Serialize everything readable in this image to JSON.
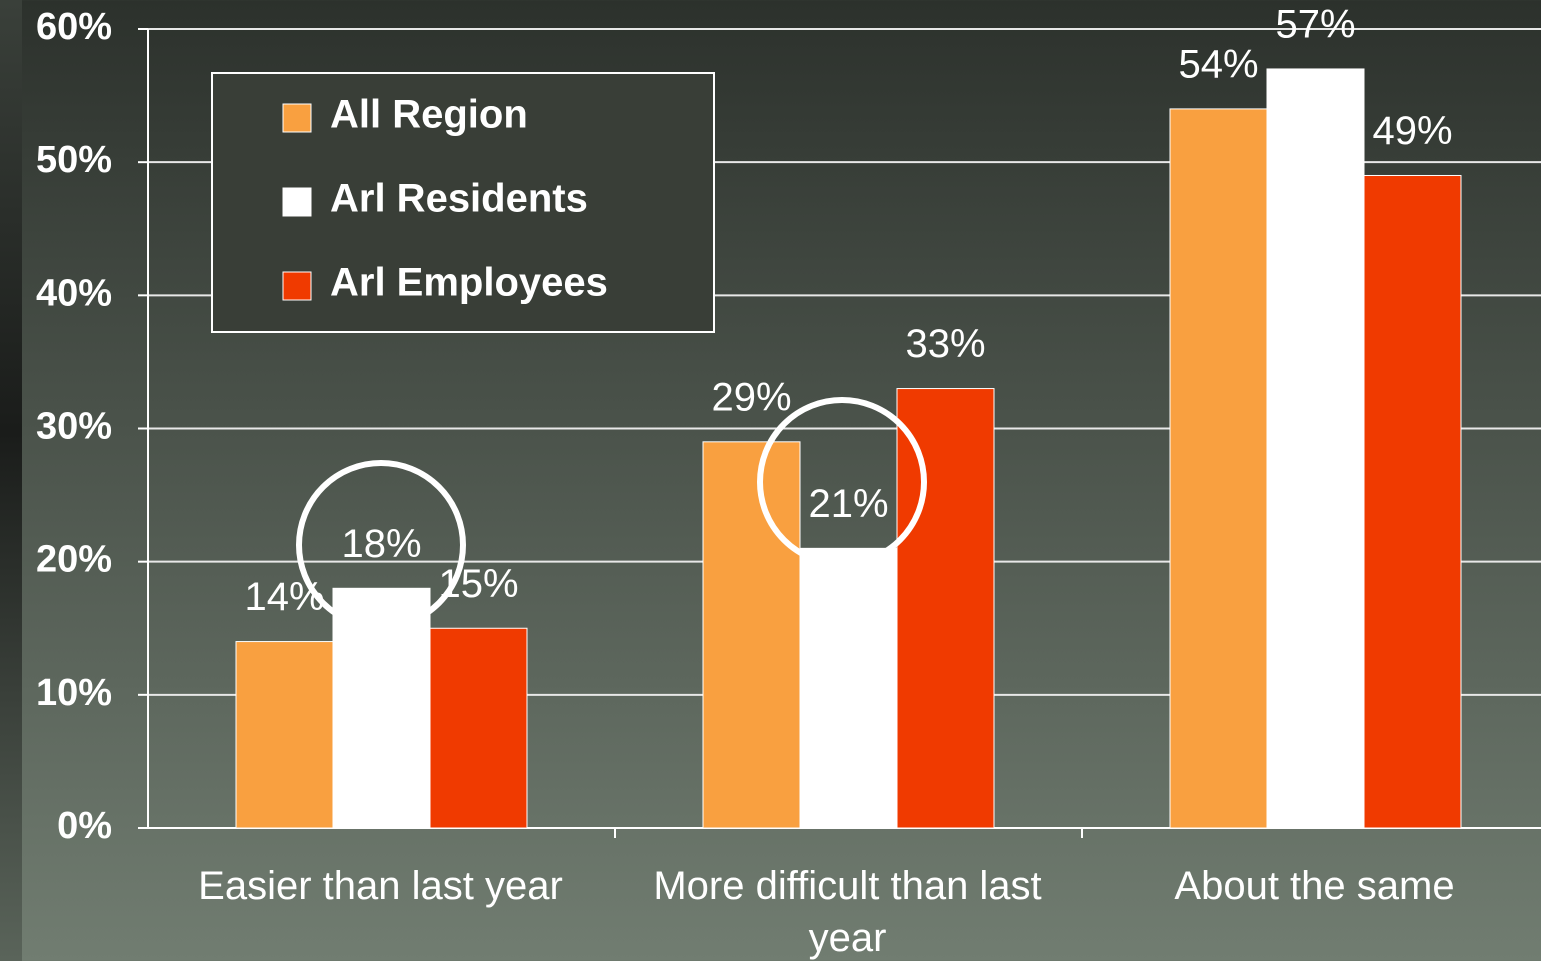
{
  "chart_data": {
    "type": "bar",
    "categories": [
      "Easier than last year",
      "More difficult than last year",
      "About the same"
    ],
    "series": [
      {
        "name": "All Region",
        "color": "#f9a040",
        "values": [
          14,
          29,
          54
        ],
        "value_labels": [
          "14%",
          "29%",
          "54%"
        ]
      },
      {
        "name": "Arl Residents",
        "color": "#ffffff",
        "values": [
          18,
          21,
          57
        ],
        "value_labels": [
          "18%",
          "21%",
          "57%"
        ]
      },
      {
        "name": "Arl Employees",
        "color": "#f03a00",
        "values": [
          15,
          33,
          49
        ],
        "value_labels": [
          "15%",
          "33%",
          "49%"
        ]
      }
    ],
    "ylim": [
      0,
      60
    ],
    "yticks": [
      {
        "value": 0,
        "label": "0%"
      },
      {
        "value": 10,
        "label": "10%"
      },
      {
        "value": 20,
        "label": "20%"
      },
      {
        "value": 30,
        "label": "30%"
      },
      {
        "value": 40,
        "label": "40%"
      },
      {
        "value": 50,
        "label": "50%"
      },
      {
        "value": 60,
        "label": "60%"
      }
    ],
    "grid": true,
    "legend": "upper left"
  }
}
